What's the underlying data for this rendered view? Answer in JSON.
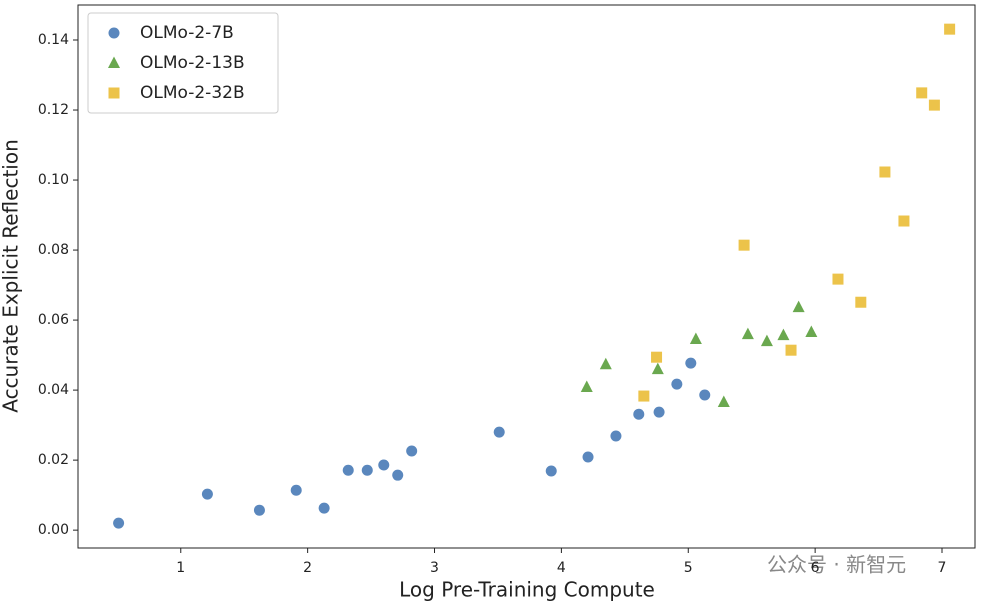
{
  "chart_data": {
    "type": "scatter",
    "x_label": "Log Pre-Training Compute",
    "y_label": "Accurate Explicit Reflection",
    "xlim": [
      0.19,
      7.26
    ],
    "ylim": [
      -0.0051,
      0.15
    ],
    "xticks": [
      1,
      2,
      3,
      4,
      5,
      6,
      7
    ],
    "yticks": [
      {
        "value": 0,
        "label": "0.00"
      },
      {
        "value": 0.02,
        "label": "0.02"
      },
      {
        "value": 0.04,
        "label": "0.04"
      },
      {
        "value": 0.06,
        "label": "0.06"
      },
      {
        "value": 0.08,
        "label": "0.08"
      },
      {
        "value": 0.1,
        "label": "0.10"
      },
      {
        "value": 0.12,
        "label": "0.12"
      },
      {
        "value": 0.14,
        "label": "0.14"
      }
    ],
    "legend": "upper left",
    "watermark": "公众号 · 新智元",
    "series": [
      {
        "name": "OLMo-2-7B",
        "color": "#5a87bd",
        "marker": "circle",
        "x": [
          0.51,
          1.21,
          1.62,
          1.91,
          2.13,
          2.32,
          2.47,
          2.6,
          2.71,
          2.82,
          3.51,
          3.92,
          4.21,
          4.43,
          4.61,
          4.77,
          4.91,
          5.02,
          5.13
        ],
        "values": [
          0.002,
          0.0103,
          0.0057,
          0.0114,
          0.0063,
          0.0171,
          0.0171,
          0.0186,
          0.0157,
          0.0226,
          0.028,
          0.0169,
          0.0209,
          0.0269,
          0.0331,
          0.0337,
          0.0417,
          0.0477,
          0.0386
        ]
      },
      {
        "name": "OLMo-2-13B",
        "color": "#6aa84f",
        "marker": "triangle",
        "x": [
          4.2,
          4.35,
          4.76,
          5.06,
          5.28,
          5.47,
          5.62,
          5.75,
          5.87,
          5.97
        ],
        "values": [
          0.0409,
          0.0474,
          0.046,
          0.0546,
          0.0366,
          0.056,
          0.054,
          0.0557,
          0.0637,
          0.0566
        ]
      },
      {
        "name": "OLMo-2-32B",
        "color": "#ecc34a",
        "marker": "square",
        "x": [
          4.65,
          4.75,
          5.44,
          5.81,
          6.18,
          6.36,
          6.55,
          6.7,
          6.84,
          6.94,
          7.06
        ],
        "values": [
          0.0383,
          0.0494,
          0.0814,
          0.0514,
          0.0717,
          0.0651,
          0.1023,
          0.0883,
          0.1249,
          0.1214,
          0.1431
        ]
      }
    ]
  }
}
